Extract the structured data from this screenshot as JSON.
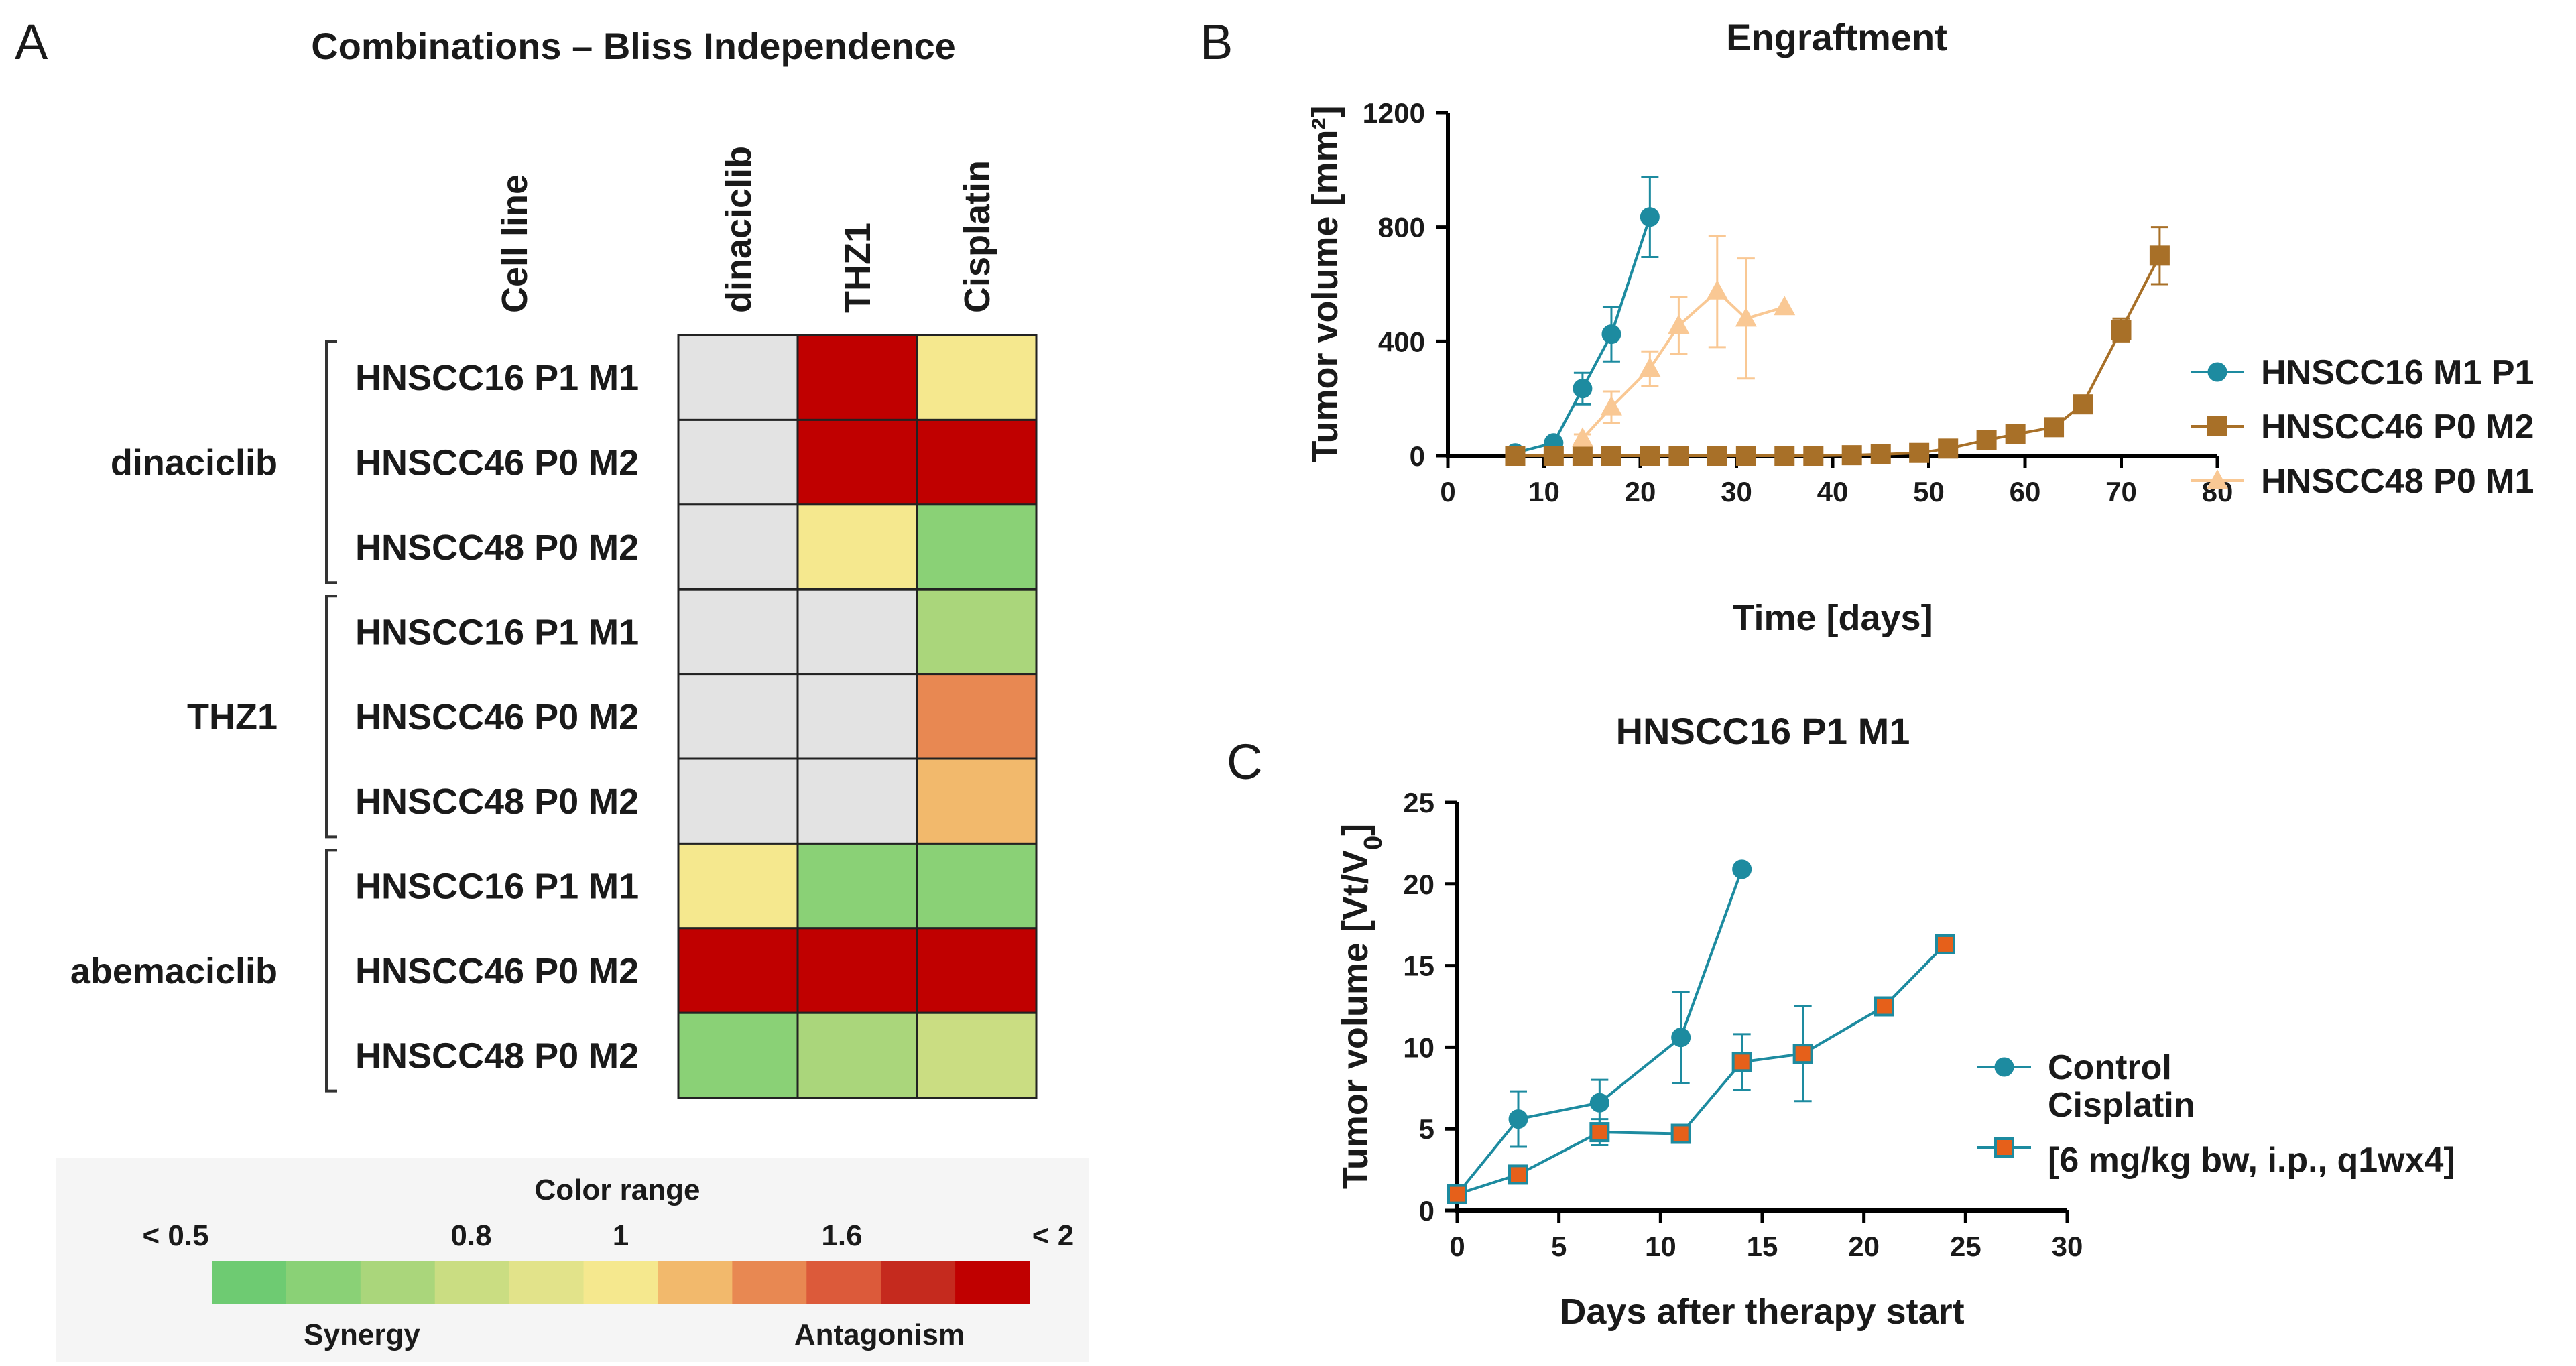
{
  "panels": {
    "a": {
      "letter": "A",
      "title": "Combinations – Bliss Independence",
      "corner_header": "Cell line",
      "groups": [
        "dinaciclib",
        "THZ1",
        "abemaciclib"
      ]
    },
    "b": {
      "letter": "B"
    },
    "c": {
      "letter": "C"
    }
  },
  "colors": {
    "na": "#e3e3e3",
    "scale": [
      "#6ecb72",
      "#8ad176",
      "#aad67b",
      "#cadd82",
      "#e2e38a",
      "#f5e88e",
      "#f2b96c",
      "#e88852",
      "#dc5a3a",
      "#c52a1e",
      "#c00000"
    ],
    "teal": "#1d8ba0",
    "brown": "#a87028",
    "peach": "#f9c894",
    "orange_fill": "#e6601a"
  },
  "chart_data": [
    {
      "type": "heatmap",
      "title": "Combinations – Bliss Independence",
      "columns": [
        "dinaciclib",
        "THZ1",
        "Cisplatin"
      ],
      "row_header": "Cell line",
      "rows": [
        {
          "group": "dinaciclib",
          "label": "HNSCC16 P1 M1",
          "cells": [
            "na",
            10,
            5
          ]
        },
        {
          "group": "dinaciclib",
          "label": "HNSCC46 P0 M2",
          "cells": [
            "na",
            10,
            10
          ]
        },
        {
          "group": "dinaciclib",
          "label": "HNSCC48 P0 M2",
          "cells": [
            "na",
            5,
            1
          ]
        },
        {
          "group": "THZ1",
          "label": "HNSCC16 P1 M1",
          "cells": [
            "na",
            "na",
            2
          ]
        },
        {
          "group": "THZ1",
          "label": "HNSCC46 P0 M2",
          "cells": [
            "na",
            "na",
            7
          ]
        },
        {
          "group": "THZ1",
          "label": "HNSCC48 P0 M2",
          "cells": [
            "na",
            "na",
            6
          ]
        },
        {
          "group": "abemaciclib",
          "label": "HNSCC16 P1 M1",
          "cells": [
            5,
            1,
            1
          ]
        },
        {
          "group": "abemaciclib",
          "label": "HNSCC46 P0 M2",
          "cells": [
            10,
            10,
            10
          ]
        },
        {
          "group": "abemaciclib",
          "label": "HNSCC48 P0 M2",
          "cells": [
            1,
            2,
            3
          ]
        }
      ],
      "color_scale": {
        "title": "Color range",
        "tick_labels": [
          "< 0.5",
          "0.8",
          "1",
          "1.6",
          "< 2"
        ],
        "left_label": "Synergy",
        "right_label": "Antagonism"
      }
    },
    {
      "type": "line",
      "title": "Engraftment",
      "xlabel": "Time [days]",
      "ylabel": "Tumor volume [mm²]",
      "xlim": [
        0,
        80
      ],
      "ylim": [
        0,
        1200
      ],
      "xticks": [
        0,
        10,
        20,
        30,
        40,
        50,
        60,
        70,
        80
      ],
      "yticks": [
        0,
        400,
        800,
        1200
      ],
      "series": [
        {
          "name": "HNSCC16 M1 P1",
          "marker": "circle",
          "color_key": "teal",
          "x": [
            7,
            11,
            14,
            17,
            21
          ],
          "y": [
            10,
            45,
            235,
            425,
            835
          ],
          "err": [
            0,
            0,
            55,
            95,
            140
          ]
        },
        {
          "name": "HNSCC46 P0 M2",
          "marker": "square",
          "color_key": "brown",
          "x": [
            7,
            11,
            14,
            17,
            21,
            24,
            28,
            31,
            35,
            38,
            42,
            45,
            49,
            52,
            56,
            59,
            63,
            66,
            70,
            74
          ],
          "y": [
            0,
            0,
            0,
            0,
            0,
            0,
            0,
            0,
            0,
            0,
            2,
            5,
            10,
            25,
            55,
            75,
            100,
            180,
            440,
            700
          ],
          "err": [
            0,
            0,
            0,
            0,
            0,
            0,
            0,
            0,
            0,
            0,
            0,
            0,
            0,
            0,
            0,
            0,
            0,
            0,
            40,
            100
          ]
        },
        {
          "name": "HNSCC48 P0 M1",
          "marker": "triangle",
          "color_key": "peach",
          "x": [
            14,
            17,
            21,
            24,
            28,
            31,
            35
          ],
          "y": [
            60,
            170,
            305,
            455,
            575,
            480,
            520
          ],
          "err": [
            15,
            55,
            60,
            100,
            195,
            210,
            0
          ]
        }
      ]
    },
    {
      "type": "line",
      "title": "HNSCC16 P1 M1",
      "xlabel": "Days after therapy start",
      "ylabel": "Tumor volume [Vt/V",
      "ylabel_sub": "0",
      "ylabel_end": "]",
      "xlim": [
        0,
        30
      ],
      "ylim": [
        0,
        25
      ],
      "xticks": [
        0,
        5,
        10,
        15,
        20,
        25,
        30
      ],
      "yticks": [
        0,
        5,
        10,
        15,
        20,
        25
      ],
      "series": [
        {
          "name": "Control",
          "marker": "circle",
          "color_key": "teal",
          "x": [
            0,
            3,
            7,
            11,
            14
          ],
          "y": [
            1,
            5.6,
            6.6,
            10.6,
            20.9
          ],
          "err": [
            0,
            1.7,
            1.4,
            2.8,
            0
          ]
        },
        {
          "name": "Cisplatin",
          "name_line2": "[6 mg/kg bw, i.p., q1wx4]",
          "marker": "square",
          "color_key": "teal",
          "fill_key": "orange_fill",
          "x": [
            0,
            3,
            7,
            11,
            14,
            17,
            21,
            24
          ],
          "y": [
            1,
            2.2,
            4.8,
            4.7,
            9.1,
            9.6,
            12.5,
            16.3
          ],
          "err": [
            0,
            0,
            0.8,
            0,
            1.7,
            2.9,
            0,
            0
          ]
        }
      ]
    }
  ]
}
